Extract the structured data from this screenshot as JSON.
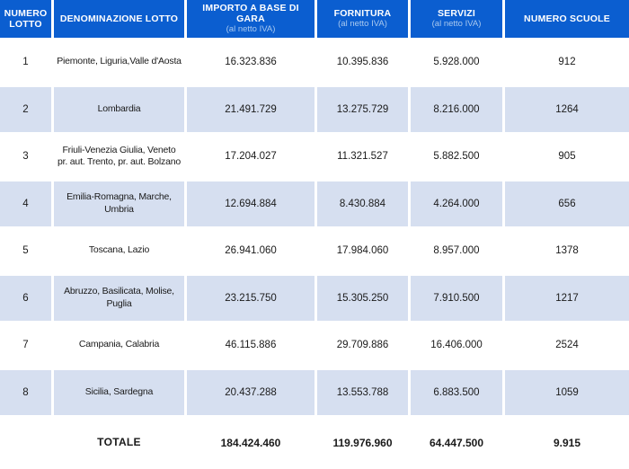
{
  "colors": {
    "header_bg": "#0b5ed0",
    "header_text": "#ffffff",
    "header_subtitle_text": "#a9c9ef",
    "row_alt_bg": "#d6dff0",
    "row_bg": "#ffffff",
    "body_text": "#1a1a1a",
    "separator": "#ffffff"
  },
  "table": {
    "headers": {
      "numero": {
        "title": "NUMERO LOTTO"
      },
      "denominazione": {
        "title": "DENOMINAZIONE LOTTO"
      },
      "importo": {
        "title": "IMPORTO A BASE DI GARA",
        "subtitle": "(al netto IVA)"
      },
      "fornitura": {
        "title": "FORNITURA",
        "subtitle": "(al netto IVA)"
      },
      "servizi": {
        "title": "SERVIZI",
        "subtitle": "(al netto IVA)"
      },
      "scuole": {
        "title": "NUMERO SCUOLE"
      }
    },
    "rows": [
      {
        "numero": "1",
        "denominazione": "Piemonte, Liguria,Valle d'Aosta",
        "importo": "16.323.836",
        "fornitura": "10.395.836",
        "servizi": "5.928.000",
        "scuole": "912"
      },
      {
        "numero": "2",
        "denominazione": "Lombardia",
        "importo": "21.491.729",
        "fornitura": "13.275.729",
        "servizi": "8.216.000",
        "scuole": "1264"
      },
      {
        "numero": "3",
        "denominazione": "Friuli-Venezia Giulia, Veneto\npr. aut. Trento, pr. aut. Bolzano",
        "importo": "17.204.027",
        "fornitura": "11.321.527",
        "servizi": "5.882.500",
        "scuole": "905"
      },
      {
        "numero": "4",
        "denominazione": "Emilia-Romagna, Marche,\nUmbria",
        "importo": "12.694.884",
        "fornitura": "8.430.884",
        "servizi": "4.264.000",
        "scuole": "656"
      },
      {
        "numero": "5",
        "denominazione": "Toscana, Lazio",
        "importo": "26.941.060",
        "fornitura": "17.984.060",
        "servizi": "8.957.000",
        "scuole": "1378"
      },
      {
        "numero": "6",
        "denominazione": "Abruzzo, Basilicata, Molise,\nPuglia",
        "importo": "23.215.750",
        "fornitura": "15.305.250",
        "servizi": "7.910.500",
        "scuole": "1217"
      },
      {
        "numero": "7",
        "denominazione": "Campania, Calabria",
        "importo": "46.115.886",
        "fornitura": "29.709.886",
        "servizi": "16.406.000",
        "scuole": "2524"
      },
      {
        "numero": "8",
        "denominazione": "Sicilia, Sardegna",
        "importo": "20.437.288",
        "fornitura": "13.553.788",
        "servizi": "6.883.500",
        "scuole": "1059"
      }
    ],
    "totale": {
      "label": "TOTALE",
      "importo": "184.424.460",
      "fornitura": "119.976.960",
      "servizi": "64.447.500",
      "scuole": "9.915"
    }
  },
  "chart_data": {
    "type": "table",
    "title": "",
    "columns": [
      "NUMERO LOTTO",
      "DENOMINAZIONE LOTTO",
      "IMPORTO A BASE DI GARA (al netto IVA)",
      "FORNITURA (al netto IVA)",
      "SERVIZI (al netto IVA)",
      "NUMERO SCUOLE"
    ],
    "rows": [
      [
        "1",
        "Piemonte, Liguria,Valle d'Aosta",
        "16.323.836",
        "10.395.836",
        "5.928.000",
        "912"
      ],
      [
        "2",
        "Lombardia",
        "21.491.729",
        "13.275.729",
        "8.216.000",
        "1264"
      ],
      [
        "3",
        "Friuli-Venezia Giulia, Veneto pr. aut. Trento, pr. aut. Bolzano",
        "17.204.027",
        "11.321.527",
        "5.882.500",
        "905"
      ],
      [
        "4",
        "Emilia-Romagna, Marche, Umbria",
        "12.694.884",
        "8.430.884",
        "4.264.000",
        "656"
      ],
      [
        "5",
        "Toscana, Lazio",
        "26.941.060",
        "17.984.060",
        "8.957.000",
        "1378"
      ],
      [
        "6",
        "Abruzzo, Basilicata, Molise, Puglia",
        "23.215.750",
        "15.305.250",
        "7.910.500",
        "1217"
      ],
      [
        "7",
        "Campania, Calabria",
        "46.115.886",
        "29.709.886",
        "16.406.000",
        "2524"
      ],
      [
        "8",
        "Sicilia, Sardegna",
        "20.437.288",
        "13.553.788",
        "6.883.500",
        "1059"
      ]
    ],
    "totals_row": [
      "TOTALE",
      "184.424.460",
      "119.976.960",
      "64.447.500",
      "9.915"
    ]
  }
}
